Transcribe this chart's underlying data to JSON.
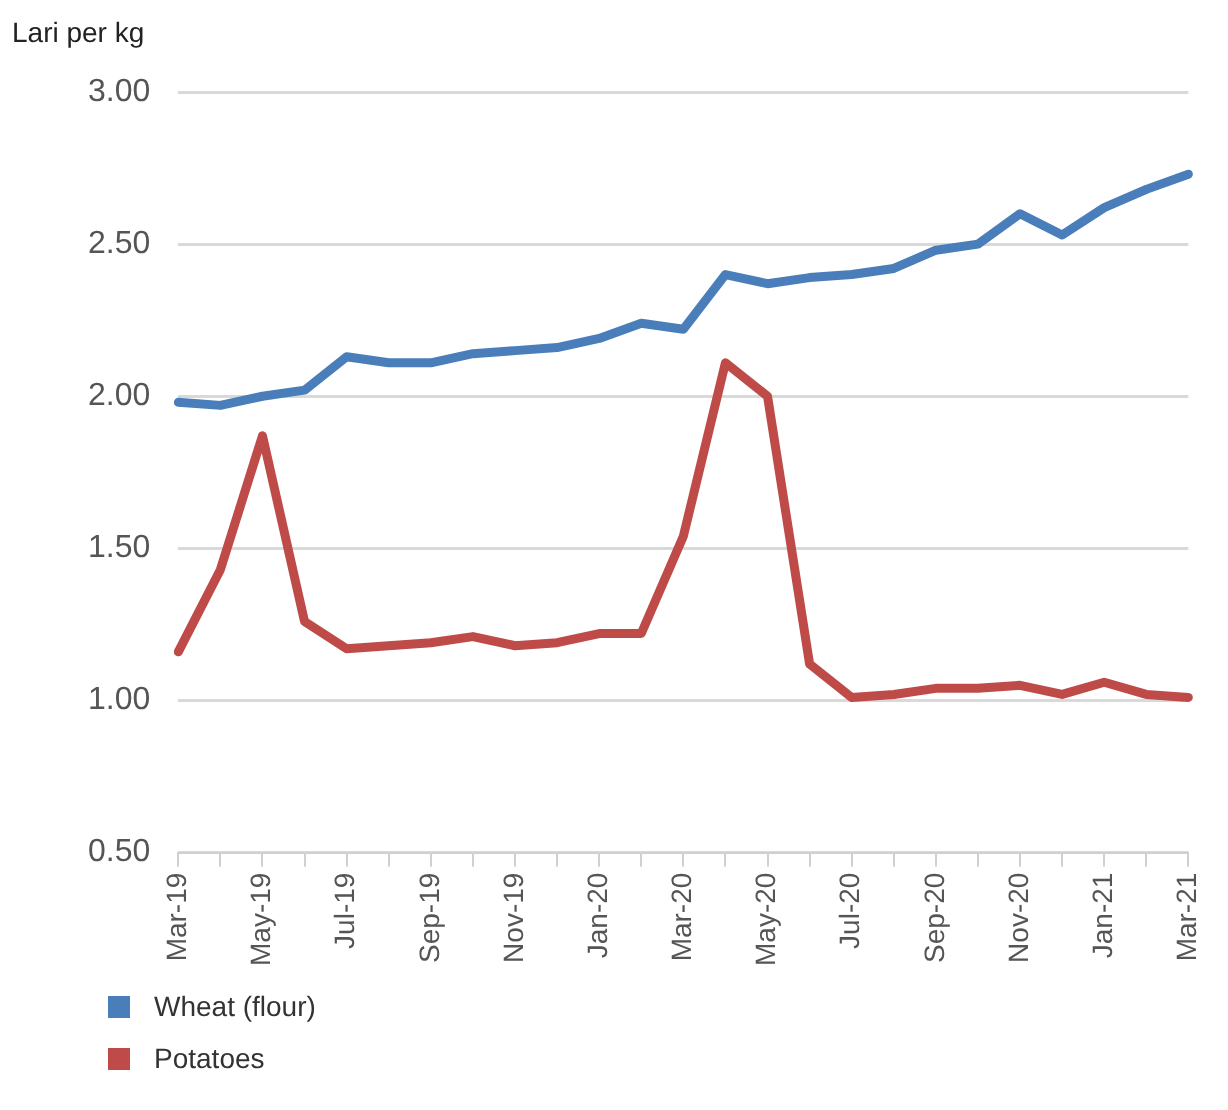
{
  "chart_data": {
    "type": "line",
    "ylabel": "Lari per kg",
    "categories": [
      "Mar-19",
      null,
      "May-19",
      null,
      "Jul-19",
      null,
      "Sep-19",
      null,
      "Nov-19",
      null,
      "Jan-20",
      null,
      "Mar-20",
      null,
      "May-20",
      null,
      "Jul-20",
      null,
      "Sep-20",
      null,
      "Nov-20",
      null,
      "Jan-21",
      null,
      "Mar-21"
    ],
    "series": [
      {
        "name": "Wheat (flour)",
        "color": "#4a7ebb",
        "values": [
          1.98,
          1.97,
          2.0,
          2.02,
          2.13,
          2.11,
          2.11,
          2.14,
          2.15,
          2.16,
          2.19,
          2.24,
          2.22,
          2.4,
          2.37,
          2.39,
          2.4,
          2.42,
          2.48,
          2.5,
          2.6,
          2.53,
          2.62,
          2.68,
          2.73
        ]
      },
      {
        "name": "Potatoes",
        "color": "#be4b48",
        "values": [
          1.16,
          1.43,
          1.87,
          1.26,
          1.17,
          1.18,
          1.19,
          1.21,
          1.18,
          1.19,
          1.22,
          1.22,
          1.54,
          2.11,
          2.0,
          1.12,
          1.01,
          1.02,
          1.04,
          1.04,
          1.05,
          1.02,
          1.06,
          1.02,
          1.01
        ]
      }
    ],
    "ylim": [
      0.5,
      3.0
    ],
    "yticks": [
      {
        "value": 0.5,
        "label": "0.50"
      },
      {
        "value": 1.0,
        "label": "1.00"
      },
      {
        "value": 1.5,
        "label": "1.50"
      },
      {
        "value": 2.0,
        "label": "2.00"
      },
      {
        "value": 2.5,
        "label": "2.50"
      },
      {
        "value": 3.0,
        "label": "3.00"
      }
    ],
    "grid": "y",
    "legend": "bottom left",
    "marker": "none",
    "line_style": "solid"
  }
}
